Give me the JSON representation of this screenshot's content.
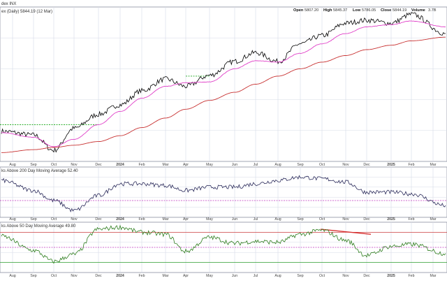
{
  "header": {
    "symbol": "dex INX",
    "series_label": "ex (Daily) 5844.19 (12 Mar)",
    "open_label": "Open",
    "open_value": "5807.20",
    "high_label": "High",
    "high_value": "5845.37",
    "low_label": "Low",
    "low_value": "5786.05",
    "close_label": "Close",
    "close_value": "5844.19",
    "volume_label": "Volume",
    "volume_value": "3.7B"
  },
  "panel2": {
    "title": "ks Above 200 Day Moving Average 52.40"
  },
  "panel3": {
    "title": "ks Above 50 Day Moving Average 49.80"
  },
  "x_axis": {
    "labels": [
      "Aug",
      "Sep",
      "Oct",
      "Nov",
      "Dec",
      "2024",
      "Feb",
      "Mar",
      "Apr",
      "May",
      "Jun",
      "Jul",
      "Aug",
      "Sep",
      "Oct",
      "Nov",
      "Dec",
      "2025",
      "Feb",
      "Mar"
    ],
    "year_labels": [
      "2024",
      "2025"
    ]
  },
  "colors": {
    "price": "#000000",
    "ma50": "#e040c8",
    "ma200": "#c83232",
    "breadth200": "#2a2a5a",
    "breadth50": "#2e7d1e",
    "grid": "#d6dbe6",
    "breakout": "#22aa22",
    "divergence": "#d83030",
    "midline": "#c03ac0",
    "upper_band": "#d04040",
    "lower_band": "#30a030"
  },
  "chart_data": [
    {
      "type": "line",
      "title": "ex (Daily) 5844.19 (12 Mar)",
      "x": [
        "Aug 2023",
        "Sep 2023",
        "Oct 2023",
        "Nov 2023",
        "Dec 2023",
        "Jan 2024",
        "Feb 2024",
        "Mar 2024",
        "Apr 2024",
        "May 2024",
        "Jun 2024",
        "Jul 2024",
        "Aug 2024",
        "Sep 2024",
        "Oct 2024",
        "Nov 2024",
        "Dec 2024",
        "Jan 2025",
        "Feb 2025",
        "Mar 2025"
      ],
      "series": [
        {
          "name": "",
          "values": [
            4510,
            4460,
            4250,
            4550,
            4740,
            4870,
            5060,
            5220,
            5120,
            5270,
            5460,
            5580,
            5460,
            5700,
            5810,
            5980,
            6020,
            5980,
            6100,
            5840
          ]
        },
        {
          "name": "",
          "values": [
            4490,
            4430,
            4300,
            4400,
            4600,
            4780,
            4960,
            5120,
            5170,
            5180,
            5360,
            5470,
            5450,
            5570,
            5700,
            5840,
            5930,
            5960,
            6010,
            5930
          ]
        },
        {
          "name": "",
          "values": [
            4220,
            4260,
            4290,
            4320,
            4370,
            4450,
            4560,
            4690,
            4810,
            4930,
            5040,
            5150,
            5260,
            5360,
            5450,
            5540,
            5620,
            5680,
            5740,
            5790
          ]
        }
      ],
      "extras": {
        "ylim": [
          4100,
          6200
        ],
        "breakout_levels": [
          {
            "value": 4600,
            "from": "Jul 2023",
            "to": "Dec 2023"
          },
          {
            "value": 5260,
            "from": "Apr 2024",
            "to": "May 2024"
          }
        ]
      }
    },
    {
      "type": "line",
      "title": "ks Above 200 Day Moving Average 52.40",
      "x": [
        "Aug 2023",
        "Sep 2023",
        "Oct 2023",
        "Nov 2023",
        "Dec 2023",
        "Jan 2024",
        "Feb 2024",
        "Mar 2024",
        "Apr 2024",
        "May 2024",
        "Jun 2024",
        "Jul 2024",
        "Aug 2024",
        "Sep 2024",
        "Oct 2024",
        "Nov 2024",
        "Dec 2024",
        "Jan 2025",
        "Feb 2025",
        "Mar 2025"
      ],
      "series": [
        {
          "name": "",
          "values": [
            74,
            62,
            50,
            38,
            56,
            70,
            70,
            68,
            62,
            66,
            66,
            70,
            74,
            78,
            76,
            72,
            60,
            60,
            58,
            44
          ]
        }
      ],
      "extras": {
        "ylim": [
          30,
          90
        ],
        "reference_line": 50
      }
    },
    {
      "type": "line",
      "title": "ks Above 50 Day Moving Average 49.80",
      "x": [
        "Aug 2023",
        "Sep 2023",
        "Oct 2023",
        "Nov 2023",
        "Dec 2023",
        "Jan 2024",
        "Feb 2024",
        "Mar 2024",
        "Apr 2024",
        "May 2024",
        "Jun 2024",
        "Jul 2024",
        "Aug 2024",
        "Sep 2024",
        "Oct 2024",
        "Nov 2024",
        "Dec 2024",
        "Jan 2025",
        "Feb 2025",
        "Mar 2025"
      ],
      "series": [
        {
          "name": "",
          "values": [
            72,
            44,
            22,
            36,
            86,
            90,
            80,
            76,
            42,
            70,
            58,
            62,
            60,
            76,
            84,
            64,
            34,
            52,
            56,
            38
          ]
        }
      ],
      "extras": {
        "ylim": [
          0,
          100
        ],
        "bands": [
          80,
          50,
          20
        ],
        "divergence": {
          "from": "Oct 2024",
          "to": "Dec 2024",
          "values": [
            86,
            76
          ]
        }
      }
    }
  ]
}
